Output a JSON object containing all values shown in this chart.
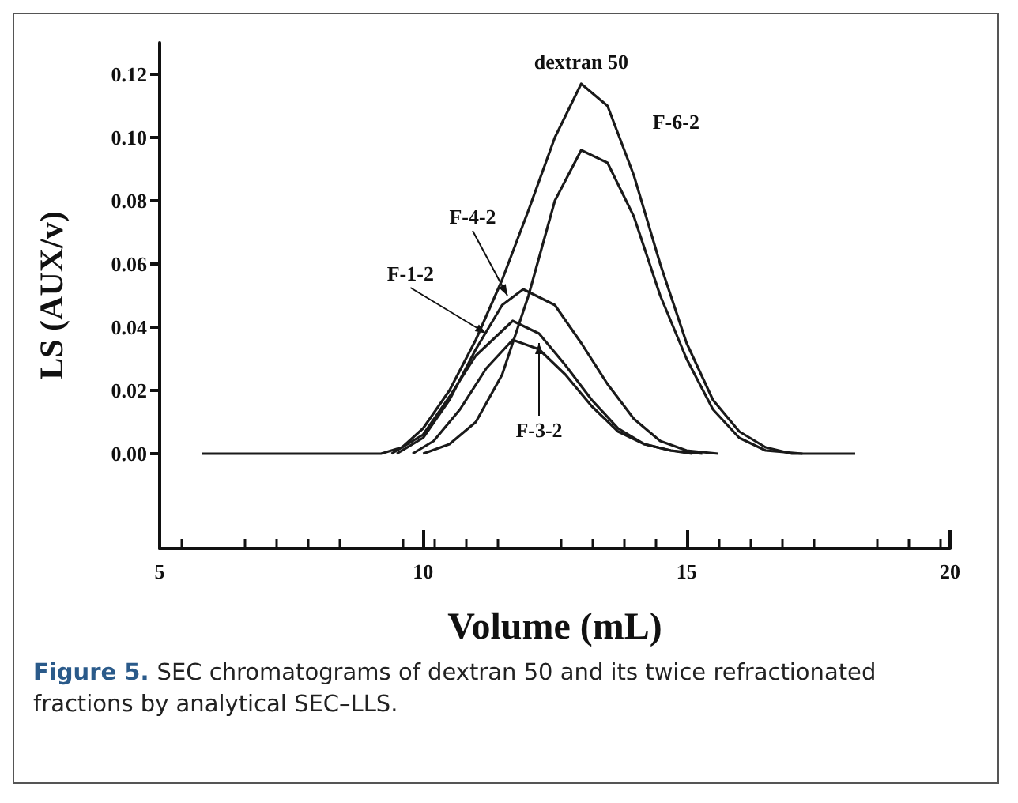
{
  "chart_data": {
    "type": "line",
    "xlabel": "Volume (mL)",
    "ylabel": "LS (AUX/v)",
    "xlim": [
      5,
      20
    ],
    "xticks": [
      5,
      10,
      15,
      20
    ],
    "ylim": [
      -0.03,
      0.13
    ],
    "yticks": [
      {
        "value": 0,
        "label": "0.00"
      },
      {
        "value": 0.02,
        "label": "0.02"
      },
      {
        "value": 0.04,
        "label": "0.04"
      },
      {
        "value": 0.06,
        "label": "0.06"
      },
      {
        "value": 0.08,
        "label": "0.08"
      },
      {
        "value": 0.1,
        "label": "0.10"
      },
      {
        "value": 0.12,
        "label": "0.12"
      }
    ],
    "grid": false,
    "marker": "none",
    "line_style": "solid",
    "series": [
      {
        "color": "#1a1a1a",
        "x": [
          5.8,
          9.2,
          9.6,
          10,
          10.5,
          11,
          11.5,
          12,
          12.5,
          13,
          13.5,
          14,
          14.5,
          15,
          15.5,
          16,
          16.5,
          17,
          18.2
        ],
        "values": [
          0,
          0,
          0.002,
          0.008,
          0.02,
          0.036,
          0.055,
          0.077,
          0.1,
          0.117,
          0.11,
          0.088,
          0.06,
          0.035,
          0.017,
          0.007,
          0.002,
          0,
          0
        ]
      },
      {
        "color": "#1a1a1a",
        "x": [
          10,
          10.5,
          11,
          11.5,
          12,
          12.5,
          13,
          13.5,
          14,
          14.5,
          15,
          15.5,
          16,
          16.5,
          17.2
        ],
        "values": [
          0,
          0.003,
          0.01,
          0.025,
          0.05,
          0.08,
          0.096,
          0.092,
          0.075,
          0.05,
          0.03,
          0.014,
          0.005,
          0.001,
          0
        ]
      },
      {
        "color": "#1a1a1a",
        "x": [
          9.5,
          10,
          10.5,
          11,
          11.5,
          11.9,
          12.5,
          13,
          13.5,
          14,
          14.5,
          15,
          15.6
        ],
        "values": [
          0,
          0.005,
          0.017,
          0.033,
          0.047,
          0.052,
          0.047,
          0.035,
          0.022,
          0.011,
          0.004,
          0.001,
          0
        ]
      },
      {
        "color": "#1a1a1a",
        "x": [
          9.4,
          10,
          10.5,
          11,
          11.7,
          12.2,
          12.7,
          13.2,
          13.7,
          14.2,
          14.7,
          15.3
        ],
        "values": [
          0,
          0.006,
          0.018,
          0.031,
          0.042,
          0.038,
          0.028,
          0.017,
          0.008,
          0.003,
          0.001,
          0
        ]
      },
      {
        "color": "#1a1a1a",
        "x": [
          9.8,
          10.2,
          10.7,
          11.2,
          11.7,
          12.2,
          12.7,
          13.2,
          13.7,
          14.2,
          14.7,
          15.1
        ],
        "values": [
          0,
          0.004,
          0.014,
          0.027,
          0.036,
          0.033,
          0.025,
          0.015,
          0.007,
          0.003,
          0.001,
          0
        ]
      }
    ],
    "annotations": [
      {
        "text": "dextran 50",
        "x": 13.0,
        "y": 0.117
      },
      {
        "text": "F-6-2",
        "x": 13.6,
        "y": 0.108
      },
      {
        "text": "F-4-2",
        "x": 11.6,
        "y": 0.05
      },
      {
        "text": "F-1-2",
        "x": 11.2,
        "y": 0.038
      },
      {
        "text": "F-3-2",
        "x": 12.2,
        "y": 0.035
      },
      "Figure 5.",
      "SEC chromatograms of dextran 50 and its twice refractionated fractions by analytical SEC–LLS."
    ]
  }
}
